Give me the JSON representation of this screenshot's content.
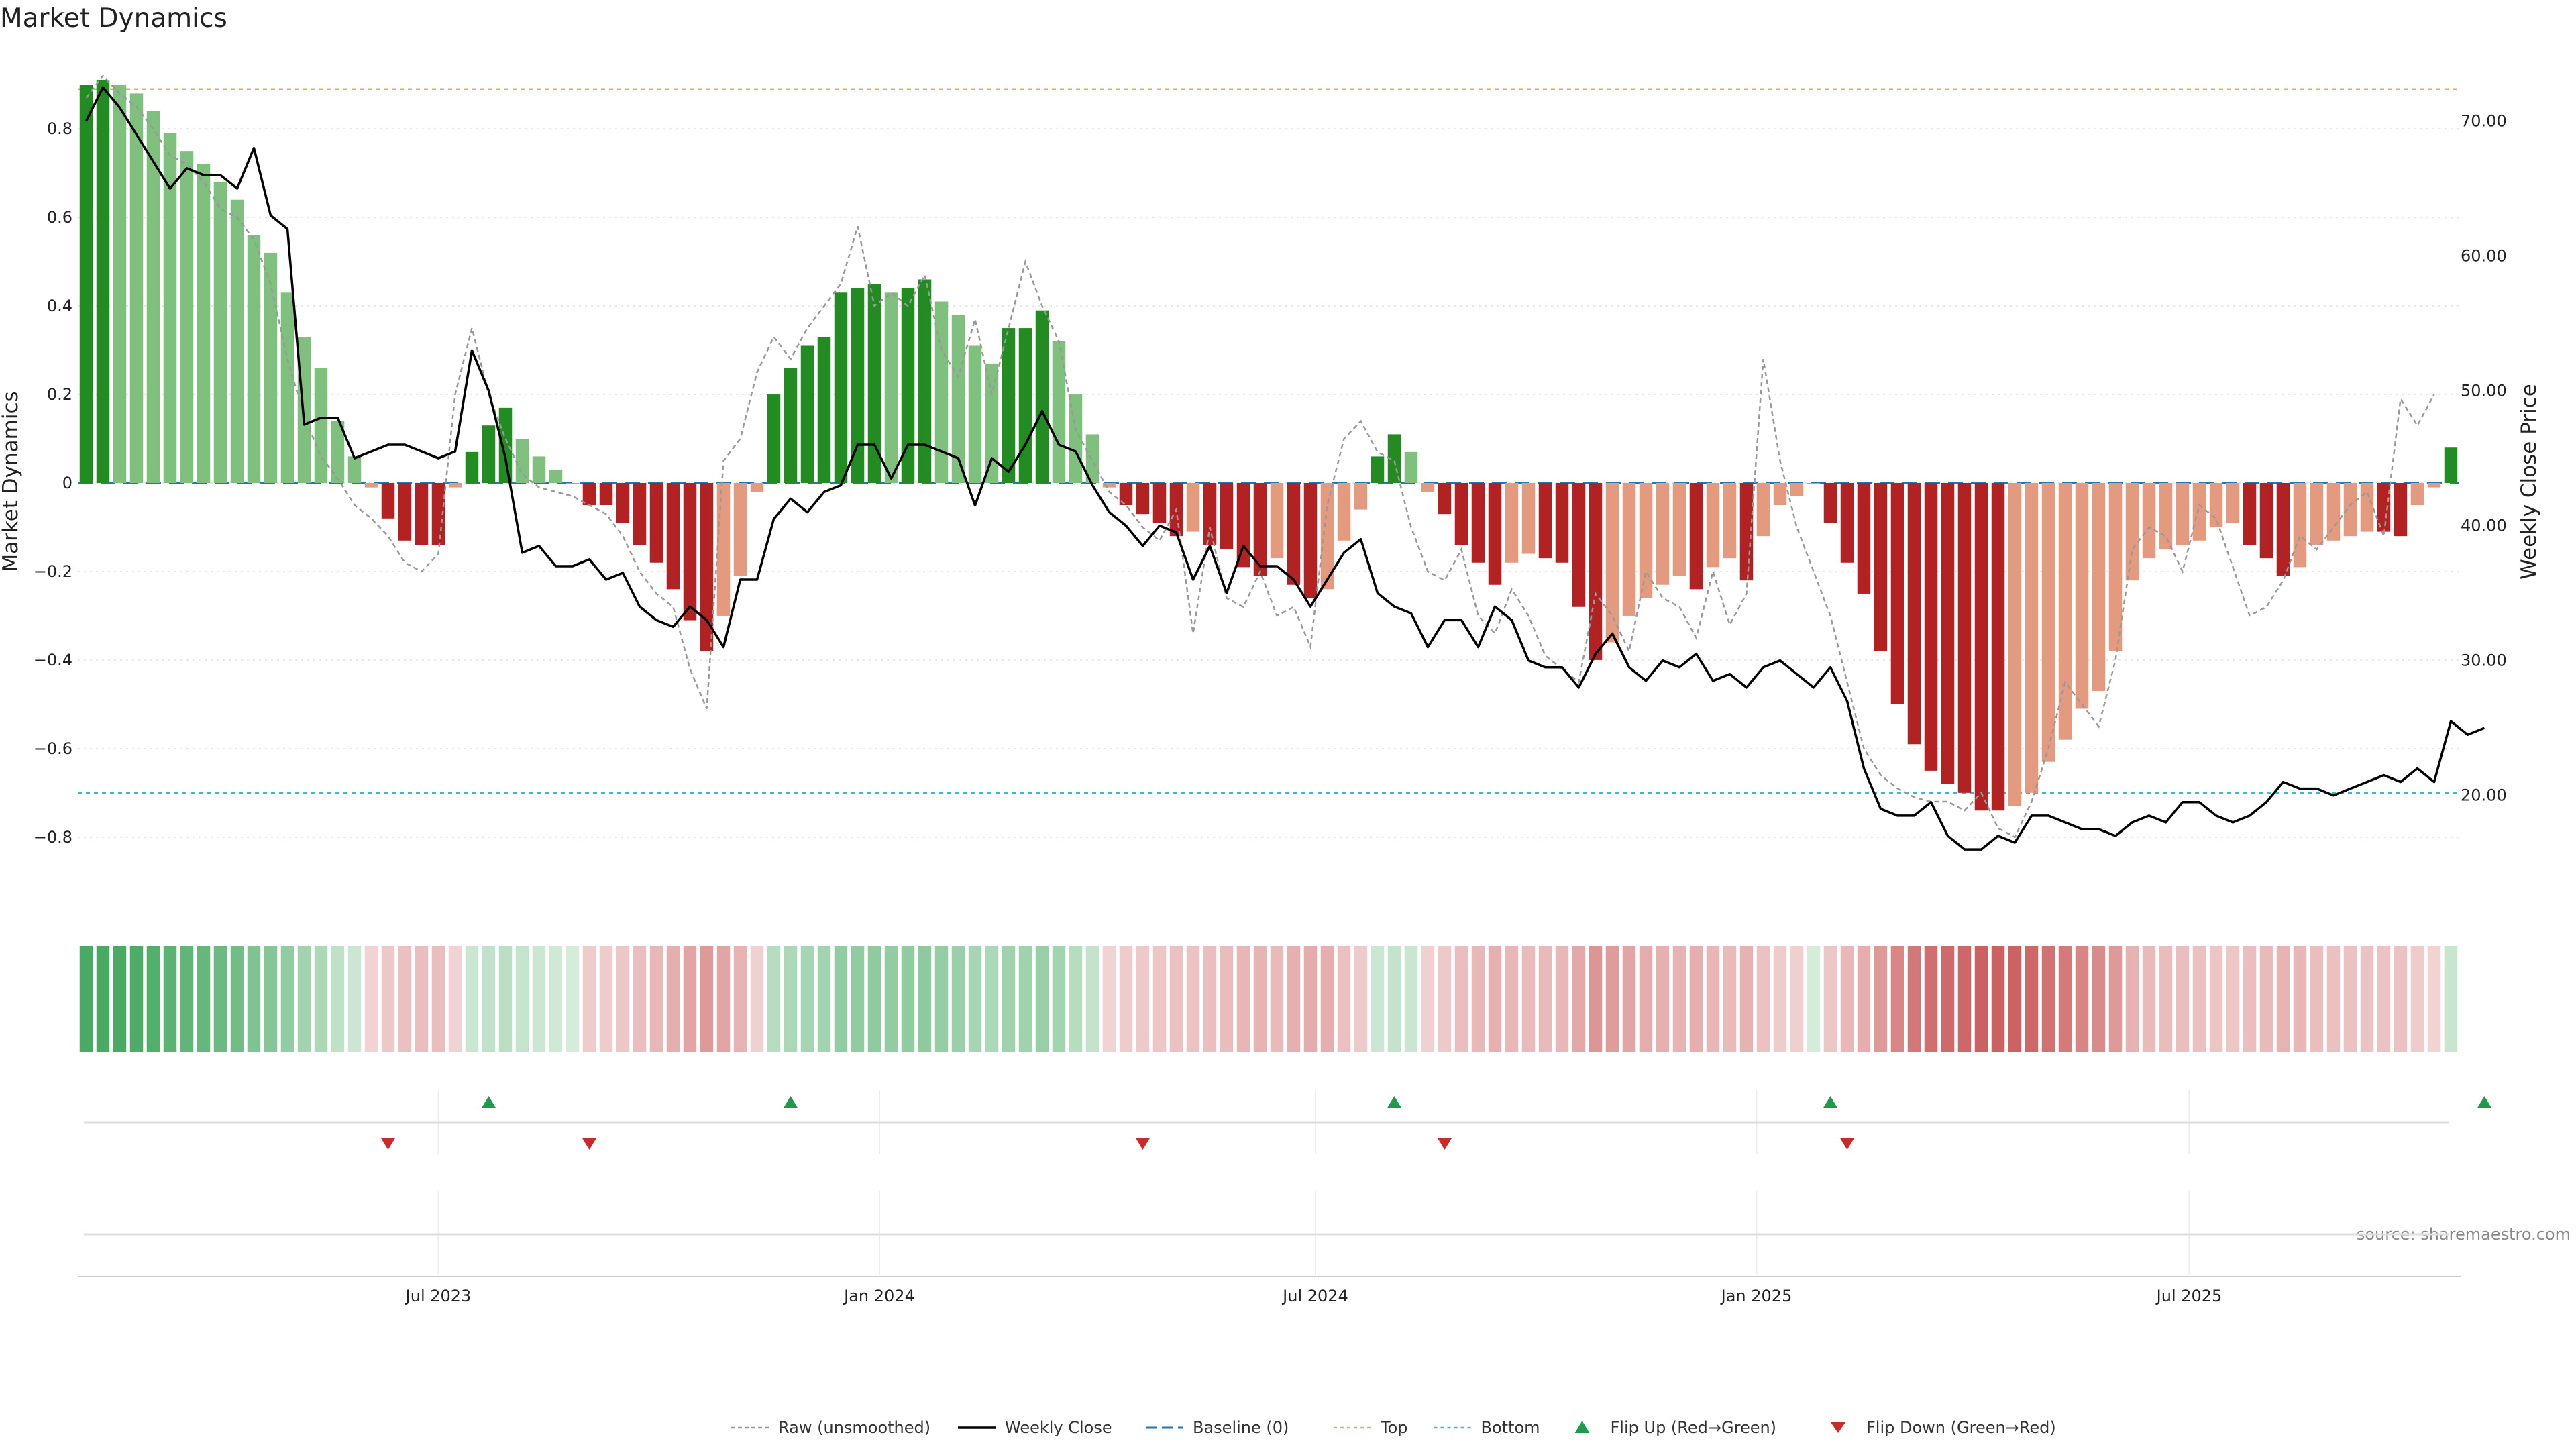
{
  "chart_data": {
    "type": "bar",
    "title": "Market Dynamics",
    "ylabel_left": "Market Dynamics",
    "ylabel_right": "Weekly Close Price",
    "source": "source: sharemaestro.com",
    "ylim_left": [
      -0.97,
      0.97
    ],
    "ylim_right": [
      11.33,
      75.0
    ],
    "grid": true,
    "legend_position": "bottom-center",
    "y_ticks_left": [
      {
        "v": 0.8,
        "label": "0.8"
      },
      {
        "v": 0.6,
        "label": "0.6"
      },
      {
        "v": 0.4,
        "label": "0.4"
      },
      {
        "v": 0.2,
        "label": "0.2"
      },
      {
        "v": 0,
        "label": "0"
      },
      {
        "v": -0.2,
        "label": "−0.2"
      },
      {
        "v": -0.4,
        "label": "−0.4"
      },
      {
        "v": -0.6,
        "label": "−0.6"
      },
      {
        "v": -0.8,
        "label": "−0.8"
      }
    ],
    "y_ticks_right": [
      {
        "v": 70,
        "label": "70.00"
      },
      {
        "v": 60,
        "label": "60.00"
      },
      {
        "v": 50,
        "label": "50.00"
      },
      {
        "v": 40,
        "label": "40.00"
      },
      {
        "v": 30,
        "label": "30.00"
      },
      {
        "v": 20,
        "label": "20.00"
      }
    ],
    "x_ticks": [
      {
        "week": 21.5,
        "label": "Jul 2023"
      },
      {
        "week": 47.8,
        "label": "Jan 2024"
      },
      {
        "week": 73.8,
        "label": "Jul 2024"
      },
      {
        "week": 100.1,
        "label": "Jan 2025"
      },
      {
        "week": 125.9,
        "label": "Jul 2025"
      }
    ],
    "reference_lines": {
      "baseline": 0,
      "top": 0.89,
      "bottom": -0.7
    },
    "momentum": [
      0.9,
      0.91,
      0.9,
      0.88,
      0.84,
      0.79,
      0.75,
      0.72,
      0.68,
      0.64,
      0.56,
      0.52,
      0.43,
      0.33,
      0.26,
      0.14,
      0.06,
      -0.01,
      -0.08,
      -0.13,
      -0.14,
      -0.14,
      -0.01,
      0.07,
      0.13,
      0.17,
      0.1,
      0.06,
      0.03,
      0.0,
      -0.05,
      -0.05,
      -0.09,
      -0.14,
      -0.18,
      -0.24,
      -0.31,
      -0.38,
      -0.3,
      -0.21,
      -0.02,
      0.2,
      0.26,
      0.31,
      0.33,
      0.43,
      0.44,
      0.45,
      0.43,
      0.44,
      0.46,
      0.41,
      0.38,
      0.31,
      0.27,
      0.35,
      0.35,
      0.39,
      0.32,
      0.2,
      0.11,
      -0.01,
      -0.05,
      -0.07,
      -0.09,
      -0.12,
      -0.11,
      -0.14,
      -0.15,
      -0.19,
      -0.21,
      -0.17,
      -0.23,
      -0.26,
      -0.24,
      -0.13,
      -0.06,
      0.06,
      0.11,
      0.07,
      -0.02,
      -0.07,
      -0.14,
      -0.18,
      -0.23,
      -0.18,
      -0.16,
      -0.17,
      -0.18,
      -0.28,
      -0.4,
      -0.36,
      -0.3,
      -0.26,
      -0.23,
      -0.21,
      -0.24,
      -0.19,
      -0.17,
      -0.22,
      -0.12,
      -0.05,
      -0.03,
      0.0,
      -0.09,
      -0.18,
      -0.25,
      -0.38,
      -0.5,
      -0.59,
      -0.65,
      -0.68,
      -0.7,
      -0.74,
      -0.74,
      -0.73,
      -0.7,
      -0.63,
      -0.58,
      -0.51,
      -0.47,
      -0.38,
      -0.22,
      -0.17,
      -0.15,
      -0.14,
      -0.13,
      -0.1,
      -0.09,
      -0.14,
      -0.17,
      -0.21,
      -0.19,
      -0.14,
      -0.13,
      -0.12,
      -0.11,
      -0.11,
      -0.12,
      -0.05,
      -0.01,
      0.08
    ],
    "raw": [
      0.87,
      0.92,
      0.88,
      0.85,
      0.8,
      0.74,
      0.72,
      0.68,
      0.62,
      0.6,
      0.55,
      0.45,
      0.28,
      0.15,
      0.06,
      0.01,
      -0.05,
      -0.08,
      -0.12,
      -0.18,
      -0.2,
      -0.16,
      0.2,
      0.35,
      0.2,
      0.1,
      0.02,
      -0.01,
      -0.02,
      -0.03,
      -0.05,
      -0.07,
      -0.12,
      -0.2,
      -0.25,
      -0.28,
      -0.42,
      -0.51,
      0.05,
      0.1,
      0.25,
      0.33,
      0.28,
      0.35,
      0.4,
      0.45,
      0.58,
      0.4,
      0.43,
      0.4,
      0.47,
      0.3,
      0.24,
      0.37,
      0.2,
      0.35,
      0.5,
      0.4,
      0.32,
      0.12,
      0.05,
      -0.02,
      -0.05,
      -0.1,
      -0.13,
      -0.06,
      -0.34,
      -0.1,
      -0.26,
      -0.28,
      -0.2,
      -0.3,
      -0.28,
      -0.37,
      -0.05,
      0.1,
      0.14,
      0.07,
      0.05,
      -0.1,
      -0.2,
      -0.22,
      -0.15,
      -0.3,
      -0.34,
      -0.24,
      -0.3,
      -0.39,
      -0.42,
      -0.45,
      -0.25,
      -0.3,
      -0.38,
      -0.2,
      -0.26,
      -0.28,
      -0.35,
      -0.2,
      -0.32,
      -0.25,
      0.28,
      0.05,
      -0.1,
      -0.2,
      -0.3,
      -0.45,
      -0.6,
      -0.66,
      -0.69,
      -0.71,
      -0.72,
      -0.72,
      -0.74,
      -0.7,
      -0.78,
      -0.8,
      -0.72,
      -0.6,
      -0.45,
      -0.5,
      -0.55,
      -0.4,
      -0.15,
      -0.1,
      -0.12,
      -0.2,
      -0.05,
      -0.08,
      -0.19,
      -0.3,
      -0.28,
      -0.22,
      -0.12,
      -0.15,
      -0.1,
      -0.05,
      -0.02,
      -0.12,
      0.19,
      0.13,
      0.2
    ],
    "close": [
      70,
      72.5,
      71,
      69,
      67,
      65,
      66.5,
      66,
      66,
      65,
      68,
      63,
      62,
      47.5,
      48,
      48,
      45,
      45.5,
      46,
      46,
      45.5,
      45,
      45.5,
      53,
      50,
      45,
      38,
      38.5,
      37,
      37,
      37.5,
      36,
      36.5,
      34,
      33,
      32.5,
      34,
      33,
      31,
      36,
      36,
      40.5,
      42,
      41,
      42.5,
      43,
      46,
      46,
      43.5,
      46,
      46,
      45.5,
      45,
      41.5,
      45,
      44,
      46,
      48.5,
      46,
      45.5,
      43,
      41,
      40,
      38.5,
      40,
      39.5,
      36,
      38.5,
      35,
      38.5,
      37,
      37,
      36,
      34,
      36,
      38,
      39,
      35,
      34,
      33.5,
      31,
      33,
      33,
      31,
      34,
      33,
      30,
      29.5,
      29.5,
      28,
      30.5,
      32,
      29.5,
      28.5,
      30,
      29.5,
      30.5,
      28.5,
      29,
      28,
      29.5,
      30,
      29,
      28,
      29.5,
      27,
      22,
      19,
      18.5,
      18.5,
      19.5,
      17,
      16,
      16,
      17,
      16.5,
      18.5,
      18.5,
      18,
      17.5,
      17.5,
      17,
      18,
      18.5,
      18,
      19.5,
      19.5,
      18.5,
      18,
      18.5,
      19.5,
      21,
      20.5,
      20.5,
      20,
      20.5,
      21,
      21.5,
      21,
      22,
      21,
      25.5,
      24.5,
      25
    ],
    "flip_up_weeks": [
      24,
      42,
      78,
      104,
      143
    ],
    "flip_down_weeks": [
      18,
      30,
      63,
      81,
      105
    ],
    "legend": [
      "Raw (unsmoothed)",
      "Weekly Close",
      "Baseline (0)",
      "Top",
      "Bottom",
      "Flip Up (Red→Green)",
      "Flip Down (Green→Red)"
    ],
    "colors": {
      "strong_up": "#228b22",
      "weak_up": "#7fc07f",
      "strong_down": "#b22222",
      "weak_down": "#e39a7e",
      "close": "#000000",
      "raw": "#999999",
      "baseline": "#1f77b4",
      "top": "#f0a860",
      "bottom": "#3cb8d0",
      "flip_up": "#1e9a4a",
      "flip_down": "#cc2a2a"
    }
  }
}
